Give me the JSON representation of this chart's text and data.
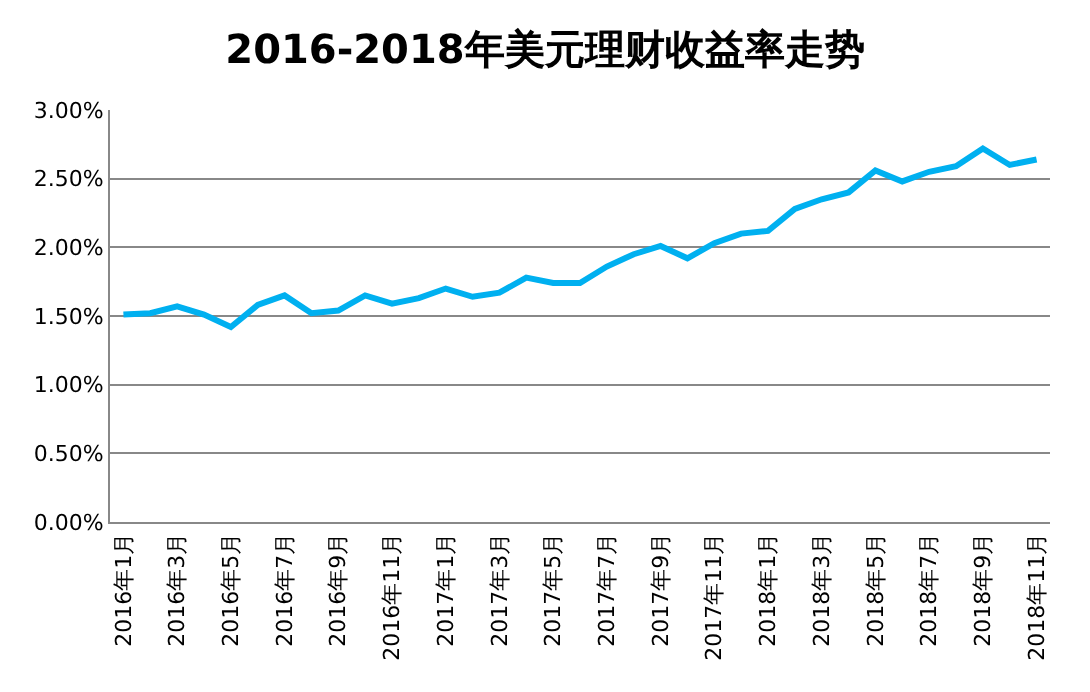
{
  "chart_data": {
    "type": "line",
    "title": "2016-2018年美元理财收益率走势",
    "categories": [
      "2016年1月",
      null,
      "2016年3月",
      null,
      "2016年5月",
      null,
      "2016年7月",
      null,
      "2016年9月",
      null,
      "2016年11月",
      null,
      "2017年1月",
      null,
      "2017年3月",
      null,
      "2017年5月",
      null,
      "2017年7月",
      null,
      "2017年9月",
      null,
      "2017年11月",
      null,
      "2018年1月",
      null,
      "2018年3月",
      null,
      "2018年5月",
      null,
      "2018年7月",
      null,
      "2018年9月",
      null,
      "2018年11月"
    ],
    "series": [
      {
        "color": "#00b0f0",
        "values": [
          1.51,
          1.52,
          1.57,
          1.51,
          1.42,
          1.58,
          1.65,
          1.52,
          1.54,
          1.65,
          1.59,
          1.63,
          1.7,
          1.64,
          1.67,
          1.78,
          1.74,
          1.74,
          1.86,
          1.95,
          2.01,
          1.92,
          2.03,
          2.1,
          2.12,
          2.28,
          2.35,
          2.4,
          2.56,
          2.48,
          2.55,
          2.59,
          2.72,
          2.6,
          2.64
        ]
      }
    ],
    "ylim": [
      0,
      3
    ],
    "yticks": [
      {
        "value": 0,
        "label": "0.00%"
      },
      {
        "value": 0.5,
        "label": "0.50%"
      },
      {
        "value": 1,
        "label": "1.00%"
      },
      {
        "value": 1.5,
        "label": "1.50%"
      },
      {
        "value": 2,
        "label": "2.00%"
      },
      {
        "value": 2.5,
        "label": "2.50%"
      },
      {
        "value": 3,
        "label": "3.00%"
      }
    ],
    "grid": "y",
    "marker": "none",
    "line_style": "solid"
  }
}
